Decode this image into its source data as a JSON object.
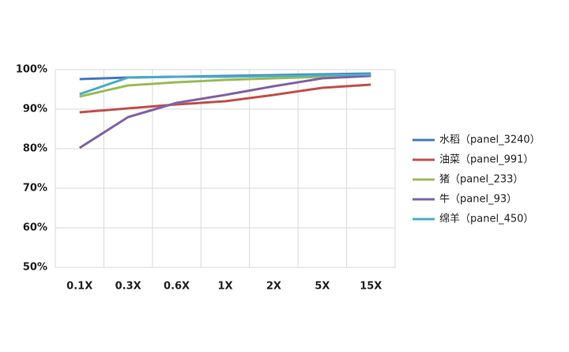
{
  "chart_data": {
    "type": "line",
    "categories": [
      "0.1X",
      "0.3X",
      "0.6X",
      "1X",
      "2X",
      "5X",
      "15X"
    ],
    "series": [
      {
        "name": "水稻（panel_3240）",
        "color": "#4677bf",
        "values": [
          97.6,
          98.0,
          98.2,
          98.4,
          98.6,
          98.8,
          99.0
        ]
      },
      {
        "name": "油菜（panel_991）",
        "color": "#c0504d",
        "values": [
          89.2,
          90.2,
          91.2,
          92.0,
          93.6,
          95.4,
          96.2
        ]
      },
      {
        "name": "猪（panel_233）",
        "color": "#9bbb59",
        "values": [
          93.2,
          96.0,
          96.8,
          97.4,
          97.8,
          98.2,
          98.6
        ]
      },
      {
        "name": "牛（panel_93）",
        "color": "#8064a2",
        "values": [
          80.2,
          88.0,
          91.6,
          93.6,
          95.8,
          97.8,
          98.4
        ]
      },
      {
        "name": "绵羊（panel_450）",
        "color": "#4bacc6",
        "values": [
          93.8,
          98.0,
          98.2,
          98.2,
          98.4,
          98.6,
          98.8
        ]
      }
    ],
    "ylim": [
      50,
      100
    ],
    "yticks": [
      {
        "value": 50,
        "label": "50%"
      },
      {
        "value": 60,
        "label": "60%"
      },
      {
        "value": 70,
        "label": "70%"
      },
      {
        "value": 80,
        "label": "80%"
      },
      {
        "value": 90,
        "label": "90%"
      },
      {
        "value": 100,
        "label": "100%"
      }
    ],
    "grid": true,
    "legend": "right"
  }
}
